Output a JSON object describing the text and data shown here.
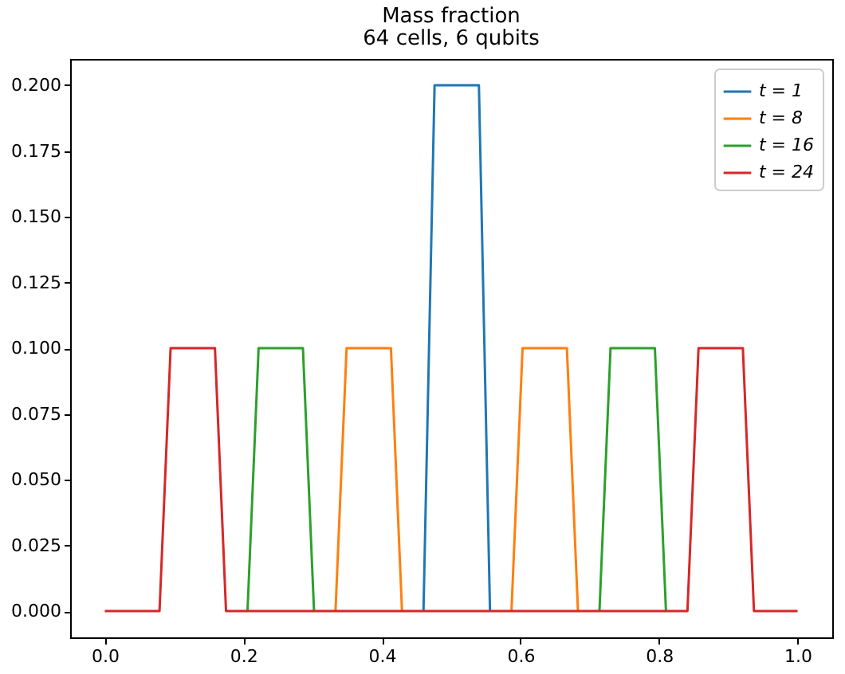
{
  "chart_data": {
    "type": "line",
    "title": "Mass fraction",
    "subtitle": "64 cells, 6 qubits",
    "x": [
      0,
      0.016,
      0.032,
      0.048,
      0.063,
      0.079,
      0.095,
      0.111,
      0.127,
      0.143,
      0.159,
      0.175,
      0.19,
      0.206,
      0.222,
      0.238,
      0.254,
      0.27,
      0.286,
      0.302,
      0.317,
      0.333,
      0.349,
      0.365,
      0.381,
      0.397,
      0.413,
      0.429,
      0.444,
      0.46,
      0.476,
      0.492,
      0.508,
      0.524,
      0.54,
      0.556,
      0.571,
      0.587,
      0.603,
      0.619,
      0.635,
      0.651,
      0.667,
      0.683,
      0.698,
      0.714,
      0.73,
      0.746,
      0.762,
      0.778,
      0.794,
      0.81,
      0.825,
      0.841,
      0.857,
      0.873,
      0.889,
      0.905,
      0.921,
      0.937,
      0.952,
      0.968,
      0.984,
      1
    ],
    "series": [
      {
        "name": "t = 1",
        "color": "#1f77b4",
        "values": [
          null,
          null,
          null,
          null,
          null,
          null,
          null,
          null,
          null,
          null,
          null,
          null,
          null,
          null,
          null,
          null,
          null,
          null,
          null,
          null,
          null,
          null,
          null,
          null,
          null,
          null,
          null,
          null,
          null,
          0,
          0.2,
          0.2,
          0.2,
          0.2,
          0.2,
          0,
          null,
          null,
          null,
          null,
          null,
          null,
          null,
          null,
          null,
          null,
          null,
          null,
          null,
          null,
          null,
          null,
          null,
          null,
          null,
          null,
          null,
          null,
          null,
          null,
          null,
          null,
          null,
          null
        ]
      },
      {
        "name": "t = 8",
        "color": "#ff7f0e",
        "values": [
          null,
          null,
          null,
          null,
          null,
          null,
          null,
          null,
          null,
          null,
          null,
          null,
          null,
          null,
          null,
          null,
          null,
          null,
          null,
          null,
          null,
          0,
          0.1,
          0.1,
          0.1,
          0.1,
          0.1,
          0,
          null,
          null,
          null,
          null,
          null,
          null,
          null,
          null,
          null,
          0,
          0.1,
          0.1,
          0.1,
          0.1,
          0.1,
          0,
          null,
          null,
          null,
          null,
          null,
          null,
          null,
          null,
          null,
          null,
          null,
          null,
          null,
          null,
          null,
          null,
          null,
          null,
          null,
          null
        ]
      },
      {
        "name": "t = 16",
        "color": "#2ca02c",
        "values": [
          null,
          null,
          null,
          null,
          null,
          null,
          null,
          null,
          null,
          null,
          null,
          null,
          null,
          0,
          0.1,
          0.1,
          0.1,
          0.1,
          0.1,
          0,
          null,
          null,
          null,
          null,
          null,
          null,
          null,
          null,
          null,
          null,
          null,
          null,
          null,
          null,
          null,
          null,
          null,
          null,
          null,
          null,
          null,
          null,
          null,
          null,
          null,
          0,
          0.1,
          0.1,
          0.1,
          0.1,
          0.1,
          0,
          null,
          null,
          null,
          null,
          null,
          null,
          null,
          null,
          null,
          null,
          null,
          null
        ]
      },
      {
        "name": "t = 24",
        "color": "#d62728",
        "values": [
          0,
          0,
          0,
          0,
          0,
          0,
          0.1,
          0.1,
          0.1,
          0.1,
          0.1,
          0,
          0,
          0,
          0,
          0,
          0,
          0,
          0,
          0,
          0,
          0,
          0,
          0,
          0,
          0,
          0,
          0,
          0,
          0,
          0,
          0,
          0,
          0,
          0,
          0,
          0,
          0,
          0,
          0,
          0,
          0,
          0,
          0,
          0,
          0,
          0,
          0,
          0,
          0,
          0,
          0,
          0,
          0,
          0.1,
          0.1,
          0.1,
          0.1,
          0.1,
          0,
          0,
          0,
          0,
          0
        ]
      }
    ],
    "xlim": [
      -0.05,
      1.05
    ],
    "xticks": [
      {
        "value": 0,
        "label": "0.0"
      },
      {
        "value": 0.2,
        "label": "0.2"
      },
      {
        "value": 0.4,
        "label": "0.4"
      },
      {
        "value": 0.6,
        "label": "0.6"
      },
      {
        "value": 0.8,
        "label": "0.8"
      },
      {
        "value": 1,
        "label": "1.0"
      }
    ],
    "ylim": [
      -0.01,
      0.21
    ],
    "yticks": [
      {
        "value": 0,
        "label": "0.000"
      },
      {
        "value": 0.025,
        "label": "0.025"
      },
      {
        "value": 0.05,
        "label": "0.050"
      },
      {
        "value": 0.075,
        "label": "0.075"
      },
      {
        "value": 0.1,
        "label": "0.100"
      },
      {
        "value": 0.125,
        "label": "0.125"
      },
      {
        "value": 0.15,
        "label": "0.150"
      },
      {
        "value": 0.175,
        "label": "0.175"
      },
      {
        "value": 0.2,
        "label": "0.200"
      }
    ],
    "legend": "top right",
    "marker": "none",
    "line_style": "solid",
    "grid": false
  }
}
